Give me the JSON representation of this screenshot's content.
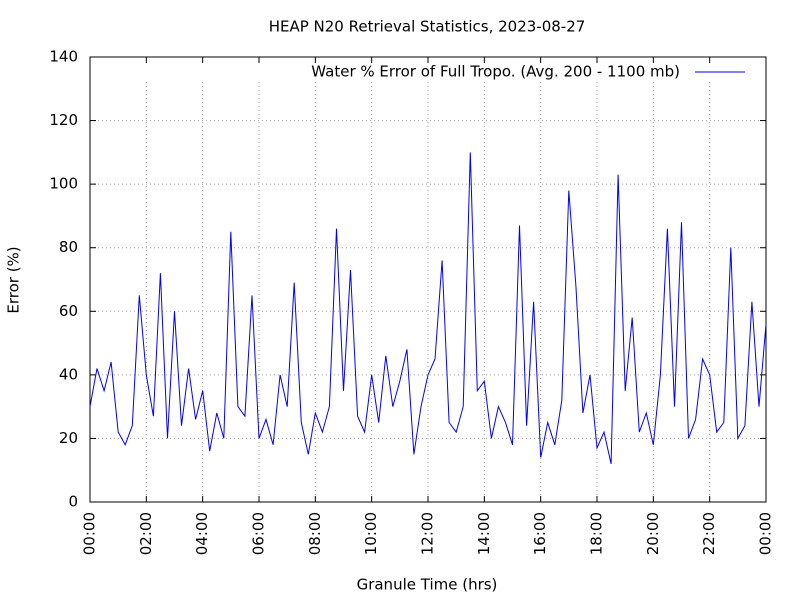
{
  "chart_data": {
    "type": "line",
    "title": "HEAP N20 Retrieval Statistics, 2023-08-27",
    "x_label": "Granule Time (hrs)",
    "y_label": "Error (%)",
    "x": [
      0,
      0.25,
      0.5,
      0.75,
      1,
      1.25,
      1.5,
      1.75,
      2,
      2.25,
      2.5,
      2.75,
      3,
      3.25,
      3.5,
      3.75,
      4,
      4.25,
      4.5,
      4.75,
      5,
      5.25,
      5.5,
      5.75,
      6,
      6.25,
      6.5,
      6.75,
      7,
      7.25,
      7.5,
      7.75,
      8,
      8.25,
      8.5,
      8.75,
      9,
      9.25,
      9.5,
      9.75,
      10,
      10.25,
      10.5,
      10.75,
      11,
      11.25,
      11.5,
      11.75,
      12,
      12.25,
      12.5,
      12.75,
      13,
      13.25,
      13.5,
      13.75,
      14,
      14.25,
      14.5,
      14.75,
      15,
      15.25,
      15.5,
      15.75,
      16,
      16.25,
      16.5,
      16.75,
      17,
      17.25,
      17.5,
      17.75,
      18,
      18.25,
      18.5,
      18.75,
      19,
      19.25,
      19.5,
      19.75,
      20,
      20.25,
      20.5,
      20.75,
      21,
      21.25,
      21.5,
      21.75,
      22,
      22.25,
      22.5,
      22.75,
      23,
      23.25,
      23.5,
      23.75,
      24
    ],
    "series": [
      {
        "name": "Water % Error of Full Tropo. (Avg. 200 - 1100 mb)",
        "color": "#0000ff",
        "values": [
          30,
          42,
          35,
          44,
          22,
          18,
          24,
          65,
          40,
          27,
          72,
          20,
          60,
          24,
          42,
          26,
          35,
          16,
          28,
          20,
          85,
          30,
          27,
          65,
          20,
          26,
          18,
          40,
          30,
          69,
          25,
          15,
          28,
          22,
          30,
          86,
          35,
          73,
          27,
          22,
          40,
          25,
          46,
          30,
          38,
          48,
          15,
          30,
          40,
          45,
          76,
          25,
          22,
          30,
          110,
          35,
          38,
          20,
          30,
          25,
          18,
          87,
          24,
          63,
          14,
          25,
          18,
          32,
          98,
          68,
          28,
          40,
          17,
          22,
          12,
          103,
          35,
          58,
          22,
          28,
          18,
          40,
          86,
          30,
          88,
          20,
          26,
          45,
          40,
          22,
          25,
          80,
          20,
          24,
          63,
          30,
          56
        ]
      }
    ],
    "xlim": [
      0,
      24
    ],
    "xticks": [
      {
        "value": 0,
        "label": "00:00"
      },
      {
        "value": 2,
        "label": "02:00"
      },
      {
        "value": 4,
        "label": "04:00"
      },
      {
        "value": 6,
        "label": "06:00"
      },
      {
        "value": 8,
        "label": "08:00"
      },
      {
        "value": 10,
        "label": "10:00"
      },
      {
        "value": 12,
        "label": "12:00"
      },
      {
        "value": 14,
        "label": "14:00"
      },
      {
        "value": 16,
        "label": "16:00"
      },
      {
        "value": 18,
        "label": "18:00"
      },
      {
        "value": 20,
        "label": "20:00"
      },
      {
        "value": 22,
        "label": "22:00"
      },
      {
        "value": 24,
        "label": "00:00"
      }
    ],
    "ylim": [
      0,
      140
    ],
    "yticks": [
      0,
      20,
      40,
      60,
      80,
      100,
      120,
      140
    ],
    "grid": true,
    "legend": "upper right"
  }
}
